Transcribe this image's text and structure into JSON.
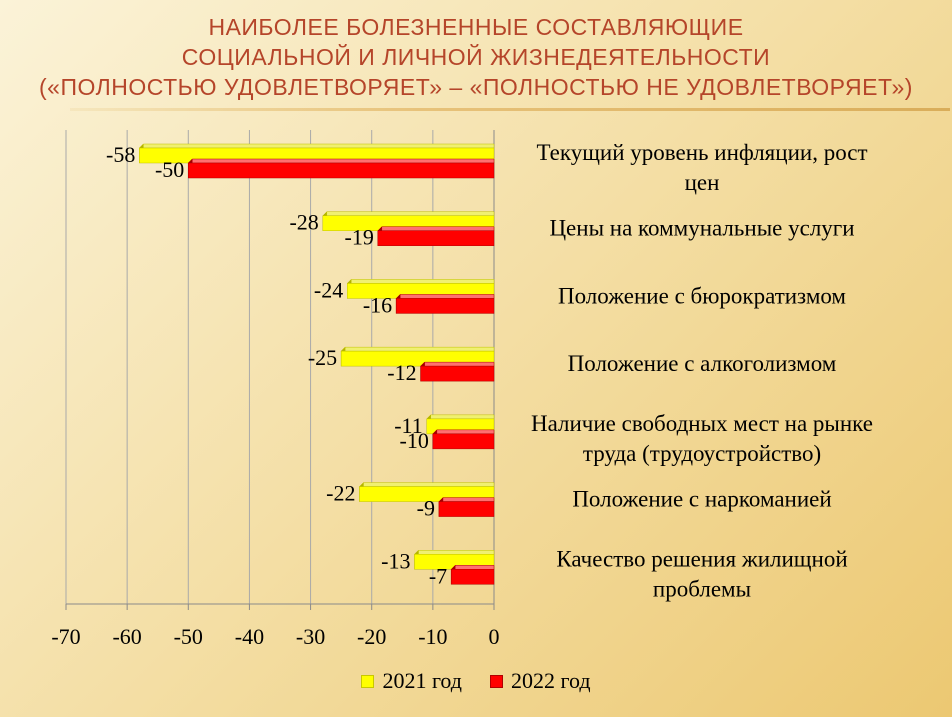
{
  "title": {
    "line1": "НАИБОЛЕЕ БОЛЕЗНЕННЫЕ СОСТАВЛЯЮЩИЕ",
    "line2": "СОЦИАЛЬНОЙ И ЛИЧНОЙ ЖИЗНЕДЕЯТЕЛЬНОСТИ",
    "line3": "(«ПОЛНОСТЬЮ УДОВЛЕТВОРЯЕТ» – «ПОЛНОСТЬЮ НЕ УДОВЛЕТВОРЯЕТ»)"
  },
  "colors": {
    "series_2021": "#ffff00",
    "series_2022": "#ff0000",
    "title": "#b5452a"
  },
  "chart_data": {
    "type": "bar",
    "orientation": "horizontal",
    "categories": [
      [
        "Текущий уровень инфляции, рост",
        "цен"
      ],
      [
        "Цены на коммунальные услуги"
      ],
      [
        "Положение с бюрократизмом"
      ],
      [
        "Положение с алкоголизмом"
      ],
      [
        "Наличие свободных мест на рынке",
        "труда (трудоустройство)"
      ],
      [
        "Положение с наркоманией"
      ],
      [
        "Качество решения жилищной",
        "проблемы"
      ]
    ],
    "series": [
      {
        "name": "2021 год",
        "values": [
          -58,
          -28,
          -24,
          -25,
          -11,
          -22,
          -13
        ]
      },
      {
        "name": "2022 год",
        "values": [
          -50,
          -19,
          -16,
          -12,
          -10,
          -9,
          -7
        ]
      }
    ],
    "xlim": [
      -70,
      0
    ],
    "xticks": [
      -70,
      -60,
      -50,
      -40,
      -30,
      -20,
      -10,
      0
    ],
    "grid": true,
    "legend_position": "bottom"
  }
}
